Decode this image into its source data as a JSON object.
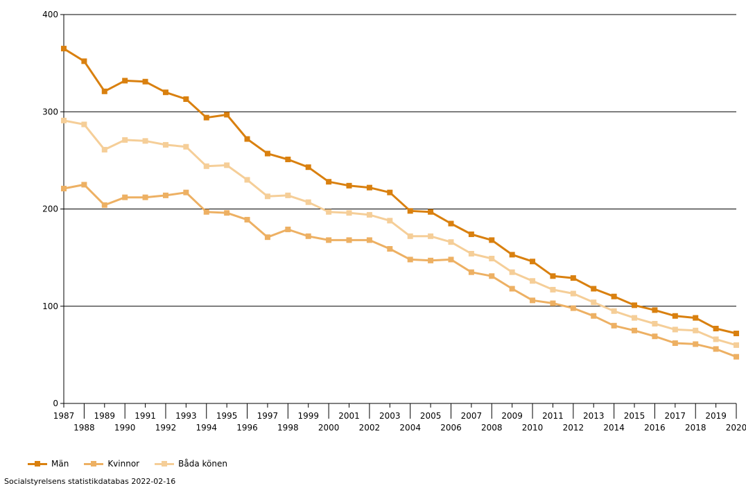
{
  "chart_data": {
    "type": "line",
    "x": [
      "1987",
      "1988",
      "1989",
      "1990",
      "1991",
      "1992",
      "1993",
      "1994",
      "1995",
      "1996",
      "1997",
      "1998",
      "1999",
      "2000",
      "2001",
      "2002",
      "2003",
      "2004",
      "2005",
      "2006",
      "2007",
      "2008",
      "2009",
      "2010",
      "2011",
      "2012",
      "2013",
      "2014",
      "2015",
      "2016",
      "2017",
      "2018",
      "2019",
      "2020"
    ],
    "ylim": [
      0,
      400
    ],
    "yticks": [
      "0",
      "100",
      "200",
      "300",
      "400"
    ],
    "grid": true,
    "legend_position": "bottom-left",
    "series": [
      {
        "name": "Män",
        "color": "#D9800F",
        "values": [
          365,
          352,
          321,
          332,
          331,
          320,
          313,
          294,
          297,
          272,
          257,
          251,
          243,
          228,
          224,
          222,
          217,
          198,
          197,
          185,
          174,
          168,
          153,
          146,
          131,
          129,
          118,
          110,
          101,
          96,
          90,
          88,
          77,
          72
        ]
      },
      {
        "name": "Kvinnor",
        "color": "#EDB063",
        "values": [
          221,
          225,
          204,
          212,
          212,
          214,
          217,
          197,
          196,
          189,
          171,
          179,
          172,
          168,
          168,
          168,
          159,
          148,
          147,
          148,
          135,
          131,
          118,
          106,
          103,
          98,
          90,
          80,
          75,
          69,
          62,
          61,
          56,
          48
        ]
      },
      {
        "name": "Båda könen",
        "color": "#F5CE98",
        "values": [
          291,
          287,
          261,
          271,
          270,
          266,
          264,
          244,
          245,
          230,
          213,
          214,
          207,
          197,
          196,
          194,
          188,
          172,
          172,
          166,
          154,
          149,
          135,
          126,
          117,
          113,
          104,
          95,
          88,
          82,
          76,
          75,
          66,
          60
        ]
      }
    ]
  },
  "legend": {
    "items": [
      "Män",
      "Kvinnor",
      "Båda könen"
    ]
  },
  "source_text": "Socialstyrelsens statistikdatabas 2022-02-16"
}
